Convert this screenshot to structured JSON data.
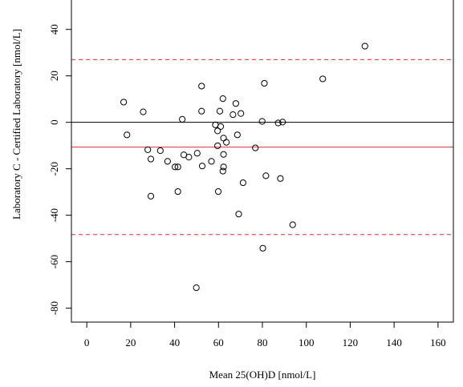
{
  "chart_data": {
    "type": "scatter",
    "xlabel": "Mean 25(OH)D [nmol/L]",
    "ylabel": "Laboratory C - Certified Laboratory [nmol/L]",
    "xlim": [
      -7,
      167
    ],
    "ylim": [
      -86,
      53
    ],
    "xticks": [
      0,
      20,
      40,
      60,
      80,
      100,
      120,
      140,
      160
    ],
    "yticks": [
      -80,
      -60,
      -40,
      -20,
      0,
      20,
      40
    ],
    "reference_lines": [
      {
        "name": "zero",
        "y": 0,
        "color": "#000000",
        "style": "solid"
      },
      {
        "name": "mean-difference",
        "y": -10.7,
        "color": "#e03030",
        "style": "solid"
      },
      {
        "name": "upper-limit-of-agreement",
        "y": 27,
        "color": "#e03030",
        "style": "dashed"
      },
      {
        "name": "lower-limit-of-agreement",
        "y": -48.3,
        "color": "#e03030",
        "style": "dashed"
      }
    ],
    "points": [
      {
        "x": 16.8,
        "y": 8.7
      },
      {
        "x": 18.3,
        "y": -5.4
      },
      {
        "x": 25.7,
        "y": 4.5
      },
      {
        "x": 27.8,
        "y": -11.8
      },
      {
        "x": 29.2,
        "y": -15.8
      },
      {
        "x": 29.2,
        "y": -31.8
      },
      {
        "x": 33.5,
        "y": -12.2
      },
      {
        "x": 36.8,
        "y": -16.8
      },
      {
        "x": 40.2,
        "y": -19.2
      },
      {
        "x": 41.5,
        "y": -19.2
      },
      {
        "x": 41.5,
        "y": -29.8
      },
      {
        "x": 43.5,
        "y": 1.3
      },
      {
        "x": 44.2,
        "y": -14.0
      },
      {
        "x": 46.5,
        "y": -15.0
      },
      {
        "x": 50.3,
        "y": -13.3
      },
      {
        "x": 52.3,
        "y": 15.6
      },
      {
        "x": 52.3,
        "y": 4.8
      },
      {
        "x": 52.6,
        "y": -18.8
      },
      {
        "x": 56.8,
        "y": -16.8
      },
      {
        "x": 58.6,
        "y": -1.1
      },
      {
        "x": 59.6,
        "y": -3.7
      },
      {
        "x": 59.6,
        "y": -10.1
      },
      {
        "x": 59.9,
        "y": -29.8
      },
      {
        "x": 60.6,
        "y": 4.8
      },
      {
        "x": 61.0,
        "y": -1.8
      },
      {
        "x": 62.0,
        "y": 10.2
      },
      {
        "x": 62.0,
        "y": -21.0
      },
      {
        "x": 62.3,
        "y": -19.2
      },
      {
        "x": 62.3,
        "y": -13.8
      },
      {
        "x": 62.3,
        "y": -6.8
      },
      {
        "x": 63.6,
        "y": -8.6
      },
      {
        "x": 66.6,
        "y": 3.3
      },
      {
        "x": 67.9,
        "y": 8.1
      },
      {
        "x": 68.6,
        "y": -5.4
      },
      {
        "x": 69.2,
        "y": -39.5
      },
      {
        "x": 70.2,
        "y": 3.8
      },
      {
        "x": 71.2,
        "y": -26.0
      },
      {
        "x": 76.8,
        "y": -11.0
      },
      {
        "x": 79.9,
        "y": 0.4
      },
      {
        "x": 80.2,
        "y": -54.2
      },
      {
        "x": 80.9,
        "y": 16.8
      },
      {
        "x": 81.6,
        "y": -23.0
      },
      {
        "x": 87.2,
        "y": -0.3
      },
      {
        "x": 88.2,
        "y": -24.2
      },
      {
        "x": 89.2,
        "y": 0.1
      },
      {
        "x": 93.8,
        "y": -44.1
      },
      {
        "x": 107.5,
        "y": 18.7
      },
      {
        "x": 126.7,
        "y": 32.8
      },
      {
        "x": 49.9,
        "y": -71.2
      }
    ]
  }
}
